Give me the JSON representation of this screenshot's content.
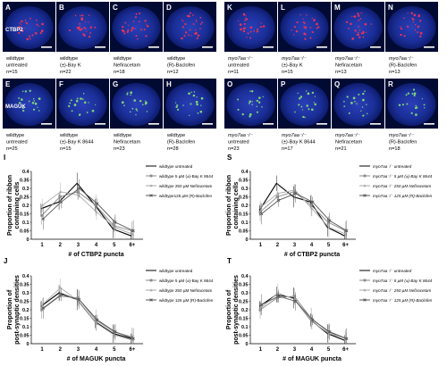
{
  "figure": {
    "panels_top": [
      {
        "letter": "A",
        "lines": [
          "wildtype",
          "untreated",
          "n=15"
        ],
        "stain": "CTBP2",
        "kind": "red"
      },
      {
        "letter": "B",
        "lines": [
          "wildtype",
          "(±)-Bay K",
          "n=22"
        ],
        "kind": "red"
      },
      {
        "letter": "C",
        "lines": [
          "wildtype",
          "Nefiracetam",
          "n=18"
        ],
        "kind": "red"
      },
      {
        "letter": "D",
        "lines": [
          "wildtype",
          "(R)-Baclofen",
          "n=12"
        ],
        "kind": "red"
      },
      {
        "letter": "K",
        "lines": [
          "myo7aa⁻/⁻",
          "untreated",
          "n=11"
        ],
        "kind": "red"
      },
      {
        "letter": "L",
        "lines": [
          "myo7aa⁻/⁻",
          "(±)-Bay K",
          "n=15"
        ],
        "kind": "red"
      },
      {
        "letter": "M",
        "lines": [
          "myo7aa⁻/⁻",
          "Nefiracetam",
          "n=13"
        ],
        "kind": "red"
      },
      {
        "letter": "N",
        "lines": [
          "myo7aa⁻/⁻",
          "(R)-Baclofen",
          "n=13"
        ],
        "kind": "red"
      }
    ],
    "panels_mid": [
      {
        "letter": "E",
        "lines": [
          "wildtype",
          "untreated",
          "n=25"
        ],
        "stain": "MAGUK",
        "kind": "green"
      },
      {
        "letter": "F",
        "lines": [
          "wildtype",
          "(±)-Bay K 8644",
          "n=15"
        ],
        "kind": "green"
      },
      {
        "letter": "G",
        "lines": [
          "wildtype",
          "Nefiracetam",
          "n=23"
        ],
        "kind": "green"
      },
      {
        "letter": "H",
        "lines": [
          "wildtype",
          "(R)-Baclofen",
          "n=28"
        ],
        "kind": "green"
      },
      {
        "letter": "O",
        "lines": [
          "myo7aa⁻/⁻",
          "untreated",
          "n=23"
        ],
        "kind": "green"
      },
      {
        "letter": "P",
        "lines": [
          "myo7aa⁻/⁻",
          "(±)-Bay K 8644",
          "n=17"
        ],
        "kind": "green"
      },
      {
        "letter": "Q",
        "lines": [
          "myo7aa⁻/⁻",
          "Nefiracetam",
          "n=21"
        ],
        "kind": "green"
      },
      {
        "letter": "R",
        "lines": [
          "myo7aa⁻/⁻",
          "(R)-Baclofen",
          "n=18"
        ],
        "kind": "green"
      }
    ],
    "colors": {
      "red_stain": "#e8325a",
      "green_stain": "#7ed67a",
      "cell_bg": "#1f3aa8",
      "dark_bg": "#000a33"
    }
  },
  "chart_data": [
    {
      "letter": "I",
      "type": "line",
      "categories": [
        "1",
        "2",
        "3",
        "4",
        "5",
        "6+"
      ],
      "ylabel": "Proportion of ribbon containing cells",
      "xlabel": "# of CTBP2 puncta",
      "ylim": [
        0,
        0.4
      ],
      "yticks": [
        "0",
        "0.05",
        "0.1",
        "0.15",
        "0.2",
        "0.25",
        "0.3",
        "0.35",
        "0.4"
      ],
      "series": [
        {
          "name": "wildtype untreated",
          "values": [
            0.18,
            0.22,
            0.33,
            0.2,
            0.06,
            0.02
          ],
          "color": "#000000",
          "marker": "none"
        },
        {
          "name": "wildtype 5 µM (±)-Bay K 8644",
          "values": [
            0.14,
            0.25,
            0.28,
            0.2,
            0.08,
            0.05
          ],
          "color": "#888888",
          "marker": "square"
        },
        {
          "name": "wildtype 250 µM Nefiracetam",
          "values": [
            0.2,
            0.28,
            0.26,
            0.16,
            0.07,
            0.03
          ],
          "color": "#aaaaaa",
          "marker": "triangle"
        },
        {
          "name": "wildtype125 µM (R)-Baclofen",
          "values": [
            0.12,
            0.22,
            0.3,
            0.21,
            0.1,
            0.05
          ],
          "color": "#555555",
          "marker": "x"
        }
      ]
    },
    {
      "letter": "S",
      "type": "line",
      "categories": [
        "1",
        "2",
        "3",
        "4",
        "5",
        "6+"
      ],
      "ylabel": "Proportion of ribbon containing cells",
      "xlabel": "# of CTBP2 puncta",
      "ylim": [
        0,
        0.4
      ],
      "yticks": [
        "0",
        "0.05",
        "0.1",
        "0.15",
        "0.2",
        "0.25",
        "0.3",
        "0.35",
        "0.4"
      ],
      "series": [
        {
          "name": "myo7aa⁻/⁻ untreated",
          "values": [
            0.17,
            0.33,
            0.25,
            0.22,
            0.07,
            0.02
          ],
          "color": "#000000",
          "marker": "none"
        },
        {
          "name": "myo7aa⁻/⁻ 5 µM (±)-Bay K 8644",
          "values": [
            0.16,
            0.25,
            0.28,
            0.2,
            0.1,
            0.05
          ],
          "color": "#888888",
          "marker": "square"
        },
        {
          "name": "myo7aa⁻/⁻ 250 µM Nefiracetam",
          "values": [
            0.19,
            0.27,
            0.29,
            0.18,
            0.07,
            0.03
          ],
          "color": "#aaaaaa",
          "marker": "triangle"
        },
        {
          "name": "myo7aa⁻/⁻ 125 µM (R)-Baclofen",
          "values": [
            0.15,
            0.23,
            0.27,
            0.22,
            0.11,
            0.05
          ],
          "color": "#555555",
          "marker": "x"
        }
      ]
    },
    {
      "letter": "J",
      "type": "line",
      "categories": [
        "1",
        "2",
        "3",
        "4",
        "5",
        "6+"
      ],
      "ylabel": "Proportion of post-synaptic densities",
      "xlabel": "# of MAGUK puncta",
      "ylim": [
        0,
        0.4
      ],
      "yticks": [
        "0",
        "0.05",
        "0.1",
        "0.15",
        "0.2",
        "0.25",
        "0.3",
        "0.35",
        "0.4"
      ],
      "series": [
        {
          "name": "wildtype untreated",
          "values": [
            0.22,
            0.3,
            0.26,
            0.13,
            0.06,
            0.03
          ],
          "color": "#000000",
          "marker": "none"
        },
        {
          "name": "wildtype 5 µM (±)-Bay K 8644",
          "values": [
            0.2,
            0.28,
            0.27,
            0.14,
            0.07,
            0.04
          ],
          "color": "#888888",
          "marker": "square"
        },
        {
          "name": "wildtype 250 µM Nefiracetam",
          "values": [
            0.23,
            0.33,
            0.25,
            0.12,
            0.05,
            0.02
          ],
          "color": "#aaaaaa",
          "marker": "triangle"
        },
        {
          "name": "wildtype 125 µM (R)-Baclofen",
          "values": [
            0.21,
            0.29,
            0.26,
            0.14,
            0.07,
            0.03
          ],
          "color": "#555555",
          "marker": "x"
        }
      ]
    },
    {
      "letter": "T",
      "type": "line",
      "categories": [
        "1",
        "2",
        "3",
        "4",
        "5",
        "6+"
      ],
      "ylabel": "Proportion of post-synaptic densities",
      "xlabel": "# of MAGUK puncta",
      "ylim": [
        0,
        0.4
      ],
      "yticks": [
        "0",
        "0.05",
        "0.1",
        "0.15",
        "0.2",
        "0.25",
        "0.3",
        "0.35",
        "0.4"
      ],
      "series": [
        {
          "name": "myo7aa⁻/⁻ untreated",
          "values": [
            0.22,
            0.29,
            0.27,
            0.14,
            0.06,
            0.02
          ],
          "color": "#000000",
          "marker": "none"
        },
        {
          "name": "myo7aa⁻/⁻ 5 µM (±)-Bay K 8644",
          "values": [
            0.2,
            0.27,
            0.28,
            0.15,
            0.07,
            0.03
          ],
          "color": "#888888",
          "marker": "square"
        },
        {
          "name": "myo7aa⁻/⁻ 250 µM Nefiracetam",
          "values": [
            0.21,
            0.3,
            0.26,
            0.13,
            0.06,
            0.03
          ],
          "color": "#aaaaaa",
          "marker": "triangle"
        },
        {
          "name": "myo7aa⁻/⁻ 125 µM (R)-Baclofen",
          "values": [
            0.23,
            0.28,
            0.25,
            0.14,
            0.07,
            0.03
          ],
          "color": "#555555",
          "marker": "x"
        }
      ]
    }
  ]
}
